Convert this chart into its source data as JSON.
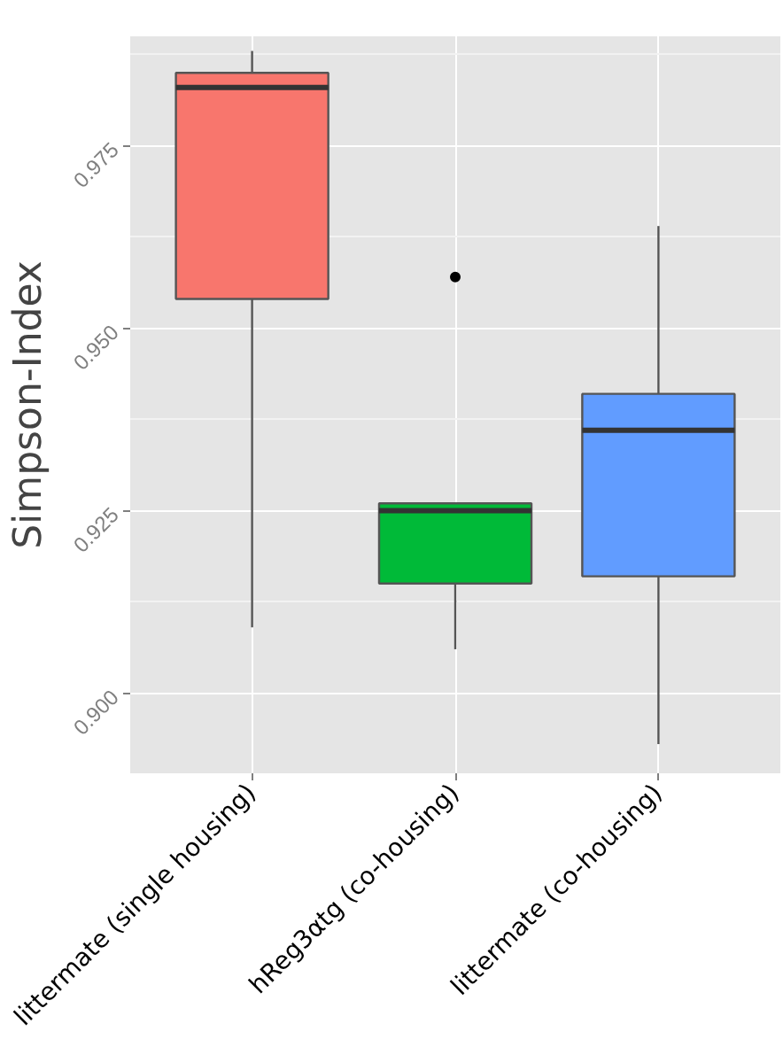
{
  "chart_data": {
    "type": "box",
    "ylabel": "Simpson-Index",
    "categories": [
      "littermate (single housing)",
      "hReg3αtg (co-housing)",
      "littermate (co-housing)"
    ],
    "colors": [
      "#f8766d",
      "#00ba38",
      "#619cff"
    ],
    "boxes": [
      {
        "low": 0.909,
        "q1": 0.954,
        "median": 0.983,
        "q3": 0.985,
        "high": 0.988
      },
      {
        "low": 0.906,
        "q1": 0.915,
        "median": 0.925,
        "q3": 0.926,
        "high": 0.926,
        "outliers": [
          0.957
        ]
      },
      {
        "low": 0.893,
        "q1": 0.916,
        "median": 0.936,
        "q3": 0.941,
        "high": 0.964
      }
    ],
    "ylim": [
      0.889,
      0.99
    ],
    "yticks": [
      {
        "value": 0.9,
        "label": "0.900"
      },
      0.925,
      {
        "value": 0.95,
        "label": "0.950"
      },
      0.975
    ],
    "grid": true
  }
}
